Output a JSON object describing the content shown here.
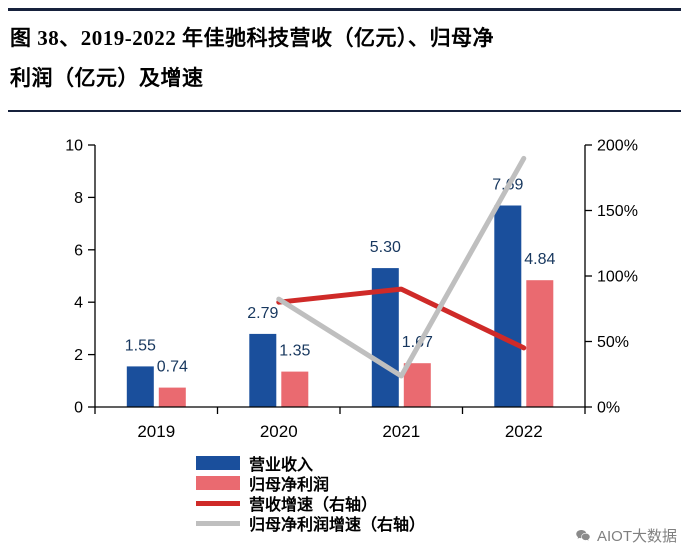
{
  "figure": {
    "title_lines": [
      "图 38、2019-2022 年佳驰科技营收（亿元）、归母净",
      "利润（亿元）及增速"
    ]
  },
  "chart_data": {
    "type": "bar+line",
    "categories": [
      "2019",
      "2020",
      "2021",
      "2022"
    ],
    "bar_series": [
      {
        "name": "营业收入",
        "axis": "left",
        "color": "#1a4f9c",
        "values": [
          1.55,
          2.79,
          5.3,
          7.69
        ]
      },
      {
        "name": "归母净利润",
        "axis": "left",
        "color": "#ea6a70",
        "values": [
          0.74,
          1.35,
          1.67,
          4.84
        ]
      }
    ],
    "line_series": [
      {
        "name": "营收增速（右轴）",
        "axis": "right",
        "color": "#cf2a28",
        "x": [
          "2020",
          "2021",
          "2022"
        ],
        "values_pct": [
          80.0,
          90.0,
          45.1
        ]
      },
      {
        "name": "归母净利润增速（右轴）",
        "axis": "right",
        "color": "#bfbfbf",
        "x": [
          "2020",
          "2021",
          "2022"
        ],
        "values_pct": [
          82.4,
          23.7,
          189.8
        ]
      }
    ],
    "left_axis": {
      "min": 0,
      "max": 10,
      "ticks": [
        0,
        2,
        4,
        6,
        8,
        10
      ]
    },
    "right_axis": {
      "min_pct": 0,
      "max_pct": 200,
      "tick_values_pct": [
        0,
        50,
        100,
        150,
        200
      ],
      "tick_labels": [
        "0%",
        "50%",
        "100%",
        "150%",
        "200%"
      ]
    },
    "grid": "off",
    "legend_position": "bottom"
  },
  "watermark": {
    "label": "AIOT大数据"
  }
}
